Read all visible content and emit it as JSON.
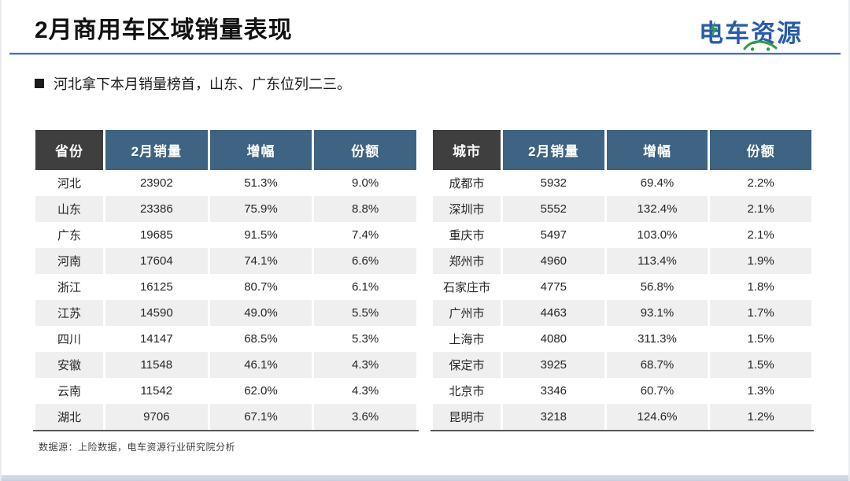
{
  "header": {
    "title": "2月商用车区域销量表现",
    "logo_text": "电车资源"
  },
  "summary": {
    "bullet": "河北拿下本月销量榜首，山东、广东位列二三。"
  },
  "tables": [
    {
      "name": "province-sales",
      "headers": [
        "省份",
        "2月销量",
        "增幅",
        "份额"
      ],
      "rows": [
        [
          "河北",
          "23902",
          "51.3%",
          "9.0%"
        ],
        [
          "山东",
          "23386",
          "75.9%",
          "8.8%"
        ],
        [
          "广东",
          "19685",
          "91.5%",
          "7.4%"
        ],
        [
          "河南",
          "17604",
          "74.1%",
          "6.6%"
        ],
        [
          "浙江",
          "16125",
          "80.7%",
          "6.1%"
        ],
        [
          "江苏",
          "14590",
          "49.0%",
          "5.5%"
        ],
        [
          "四川",
          "14147",
          "68.5%",
          "5.3%"
        ],
        [
          "安徽",
          "11548",
          "46.1%",
          "4.3%"
        ],
        [
          "云南",
          "11542",
          "62.0%",
          "4.3%"
        ],
        [
          "湖北",
          "9706",
          "67.1%",
          "3.6%"
        ]
      ]
    },
    {
      "name": "city-sales",
      "headers": [
        "城市",
        "2月销量",
        "增幅",
        "份额"
      ],
      "rows": [
        [
          "成都市",
          "5932",
          "69.4%",
          "2.2%"
        ],
        [
          "深圳市",
          "5552",
          "132.4%",
          "2.1%"
        ],
        [
          "重庆市",
          "5497",
          "103.0%",
          "2.1%"
        ],
        [
          "郑州市",
          "4960",
          "113.4%",
          "1.9%"
        ],
        [
          "石家庄市",
          "4775",
          "56.8%",
          "1.8%"
        ],
        [
          "广州市",
          "4463",
          "93.1%",
          "1.7%"
        ],
        [
          "上海市",
          "4080",
          "311.3%",
          "1.5%"
        ],
        [
          "保定市",
          "3925",
          "68.7%",
          "1.5%"
        ],
        [
          "北京市",
          "3346",
          "60.7%",
          "1.3%"
        ],
        [
          "昆明市",
          "3218",
          "124.6%",
          "1.2%"
        ]
      ]
    }
  ],
  "footer": {
    "source": "数据源：上险数据，电车资源行业研究院分析"
  },
  "colors": {
    "header_cell_blue": "#3e6383",
    "header_cell_dark": "#3f3f3f",
    "row_stripe": "#efefef",
    "table_bottom_border": "#595959",
    "divider_blue": "#4472c4",
    "logo_blue": "#2a5caa",
    "logo_green": "#2f9e44",
    "bottom_bar": "#c6cedd"
  }
}
